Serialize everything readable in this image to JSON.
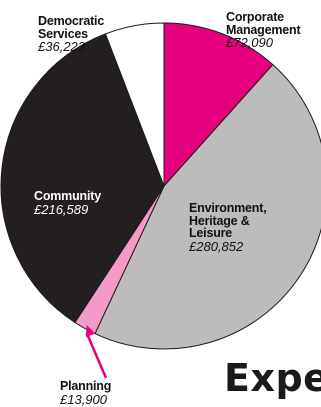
{
  "chart_data": {
    "type": "pie",
    "title": "Expe",
    "slices": [
      {
        "key": "corporate",
        "label": [
          "Corporate",
          "Management"
        ],
        "value_label": "£72,090",
        "value": 72090,
        "color": "#e6007e"
      },
      {
        "key": "environment",
        "label": [
          "Environment,",
          "Heritage &",
          "Leisure"
        ],
        "value_label": "£280,852",
        "value": 280852,
        "color": "#bcbcbc"
      },
      {
        "key": "planning",
        "label": [
          "Planning"
        ],
        "value_label": "£13,900",
        "value": 13900,
        "color": "#f49ac8"
      },
      {
        "key": "community",
        "label": [
          "Community"
        ],
        "value_label": "£216,589",
        "value": 216589,
        "color": "#231f20"
      },
      {
        "key": "democratic",
        "label": [
          "Democratic",
          "Services"
        ],
        "value_label": "£36,223",
        "value": 36223,
        "color": "#ffffff"
      }
    ],
    "start": "12 o'clock",
    "direction": "clockwise",
    "pointer_color": "#e6007e",
    "stroke_color": "#1a1a1a"
  }
}
